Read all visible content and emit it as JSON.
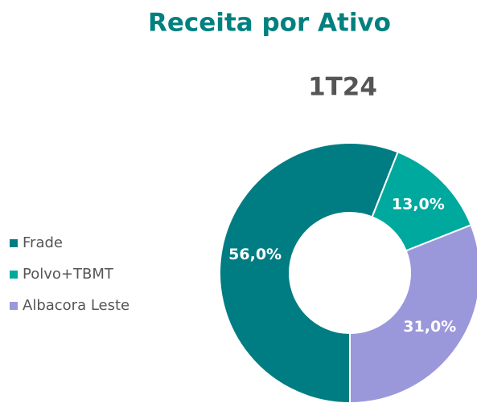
{
  "chart_data": {
    "type": "donut",
    "title": "Receita por Ativo",
    "subtitle": "1T24",
    "categories": [
      "Frade",
      "Polvo+TBMT",
      "Albacora Leste"
    ],
    "values": [
      56,
      13,
      31
    ],
    "value_labels": [
      "56,0%",
      "13,0%",
      "31,0%"
    ],
    "colors": [
      "#007d82",
      "#00a99d",
      "#9b97db"
    ],
    "legend": "left"
  }
}
